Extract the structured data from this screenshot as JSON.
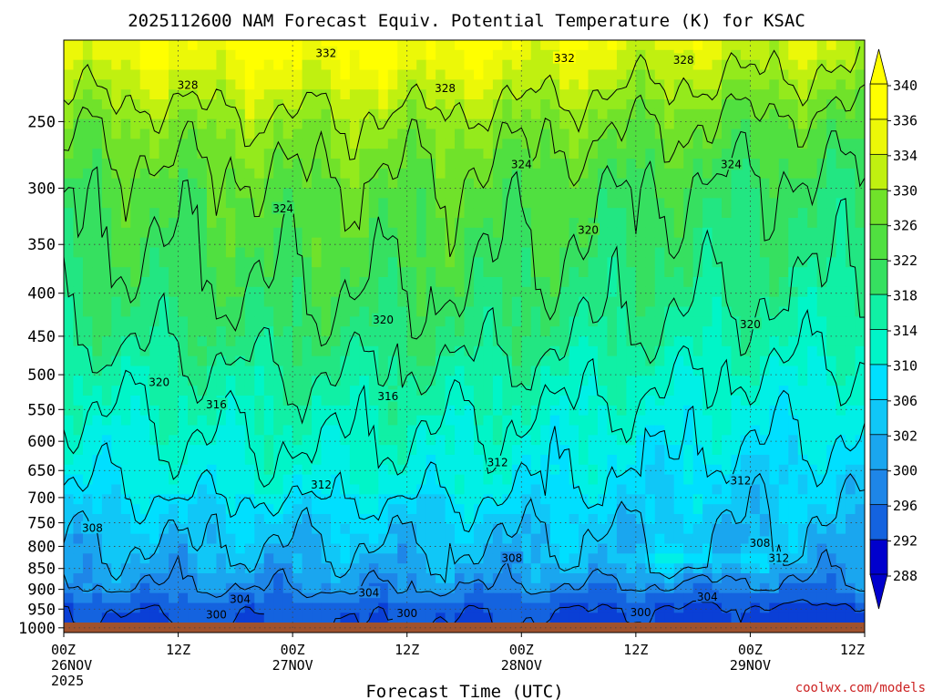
{
  "title": "2025112600 NAM Forecast Equiv. Potential Temperature (K) for KSAC",
  "xlabel": "Forecast Time (UTC)",
  "credit": "coolwx.com/models",
  "colors": {
    "background": "#ffffff",
    "ground": "#a0522d",
    "contour": "#000000",
    "credit": "#cc2222",
    "colormap": [
      "#0000cd",
      "#0a3fd6",
      "#1463df",
      "#1e86e8",
      "#1aa6ef",
      "#10c7f7",
      "#00dfff",
      "#00f0e6",
      "#00f5c8",
      "#10f0a5",
      "#22e682",
      "#36e060",
      "#50e040",
      "#70e22a",
      "#94ea1c",
      "#c0f010",
      "#ecf808",
      "#ffff00"
    ]
  },
  "chart_data": {
    "type": "heatmap",
    "title": "2025112600 NAM Forecast Equiv. Potential Temperature (K) for KSAC",
    "xlabel": "Forecast Time (UTC)",
    "ylabel": "",
    "x_ticks": [
      {
        "top": "00Z",
        "mid": "26NOV",
        "bot": "2025"
      },
      {
        "top": "12Z",
        "mid": "",
        "bot": ""
      },
      {
        "top": "00Z",
        "mid": "27NOV",
        "bot": ""
      },
      {
        "top": "12Z",
        "mid": "",
        "bot": ""
      },
      {
        "top": "00Z",
        "mid": "28NOV",
        "bot": ""
      },
      {
        "top": "12Z",
        "mid": "",
        "bot": ""
      },
      {
        "top": "00Z",
        "mid": "29NOV",
        "bot": ""
      },
      {
        "top": "12Z",
        "mid": "",
        "bot": ""
      }
    ],
    "x_hours": [
      0,
      12,
      24,
      36,
      48,
      60,
      72,
      84
    ],
    "xlim_hours": [
      0,
      84
    ],
    "y_ticks": [
      250,
      300,
      350,
      400,
      450,
      500,
      550,
      600,
      650,
      700,
      750,
      800,
      850,
      900,
      950,
      1000
    ],
    "ylim_hpa": [
      200,
      1013
    ],
    "y_scale": "log",
    "grid": "dotted",
    "colorbar_ticks": [
      288,
      292,
      296,
      300,
      302,
      306,
      310,
      314,
      318,
      322,
      326,
      330,
      334,
      336,
      340
    ],
    "contour_labels": [
      {
        "text": "332",
        "hour": 27.5,
        "p": 207
      },
      {
        "text": "332",
        "hour": 52.5,
        "p": 210
      },
      {
        "text": "328",
        "hour": 65,
        "p": 211
      },
      {
        "text": "328",
        "hour": 13,
        "p": 226
      },
      {
        "text": "328",
        "hour": 40,
        "p": 228
      },
      {
        "text": "324",
        "hour": 48,
        "p": 281
      },
      {
        "text": "324",
        "hour": 70,
        "p": 281
      },
      {
        "text": "324",
        "hour": 23,
        "p": 317
      },
      {
        "text": "320",
        "hour": 55,
        "p": 336
      },
      {
        "text": "320",
        "hour": 33.5,
        "p": 430
      },
      {
        "text": "320",
        "hour": 72,
        "p": 435
      },
      {
        "text": "320",
        "hour": 10,
        "p": 510
      },
      {
        "text": "316",
        "hour": 16,
        "p": 542
      },
      {
        "text": "316",
        "hour": 34,
        "p": 530
      },
      {
        "text": "312",
        "hour": 45.5,
        "p": 635
      },
      {
        "text": "312",
        "hour": 27,
        "p": 675
      },
      {
        "text": "312",
        "hour": 71,
        "p": 668
      },
      {
        "text": "308",
        "hour": 3,
        "p": 760
      },
      {
        "text": "308",
        "hour": 47,
        "p": 826
      },
      {
        "text": "308",
        "hour": 73,
        "p": 792
      },
      {
        "text": "312",
        "hour": 75,
        "p": 826
      },
      {
        "text": "304",
        "hour": 18.5,
        "p": 924
      },
      {
        "text": "304",
        "hour": 32,
        "p": 908
      },
      {
        "text": "304",
        "hour": 67.5,
        "p": 918
      },
      {
        "text": "300",
        "hour": 16,
        "p": 964
      },
      {
        "text": "300",
        "hour": 36,
        "p": 960
      },
      {
        "text": "300",
        "hour": 60.5,
        "p": 958
      }
    ]
  }
}
